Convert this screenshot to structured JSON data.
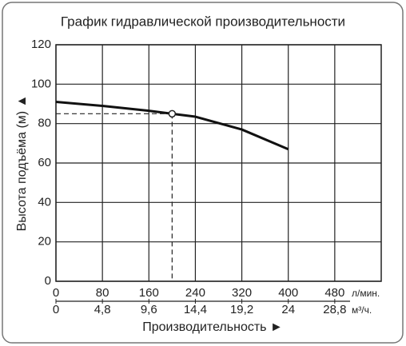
{
  "chart_data": {
    "type": "line",
    "title": "График гидравлической производительности",
    "y_label": "Высота подъёма (м) ▲",
    "x_label": "Производительность ►",
    "x_unit": "л/мин.",
    "x2_unit": "м³/ч.",
    "x": [
      0,
      80,
      160,
      200,
      240,
      320,
      400
    ],
    "series": [
      {
        "color": "#111111",
        "values": [
          91,
          89,
          86.5,
          85,
          83.5,
          77,
          67
        ]
      }
    ],
    "marker": {
      "x": 200,
      "y": 85
    },
    "xlim": [
      0,
      560
    ],
    "xticks": [
      0,
      80,
      160,
      240,
      320,
      400,
      480
    ],
    "x2lim": [
      0,
      33.6
    ],
    "x2ticks": [
      0,
      {
        "value": 4.8,
        "label": "4,8"
      },
      {
        "value": 9.6,
        "label": "9,6"
      },
      {
        "value": 14.4,
        "label": "14,4"
      },
      {
        "value": 19.2,
        "label": "19,2"
      },
      24,
      {
        "value": 28.8,
        "label": "28,8"
      }
    ],
    "ylim": [
      0,
      120
    ],
    "yticks": [
      0,
      20,
      40,
      60,
      80,
      100,
      120
    ],
    "grid": true
  }
}
